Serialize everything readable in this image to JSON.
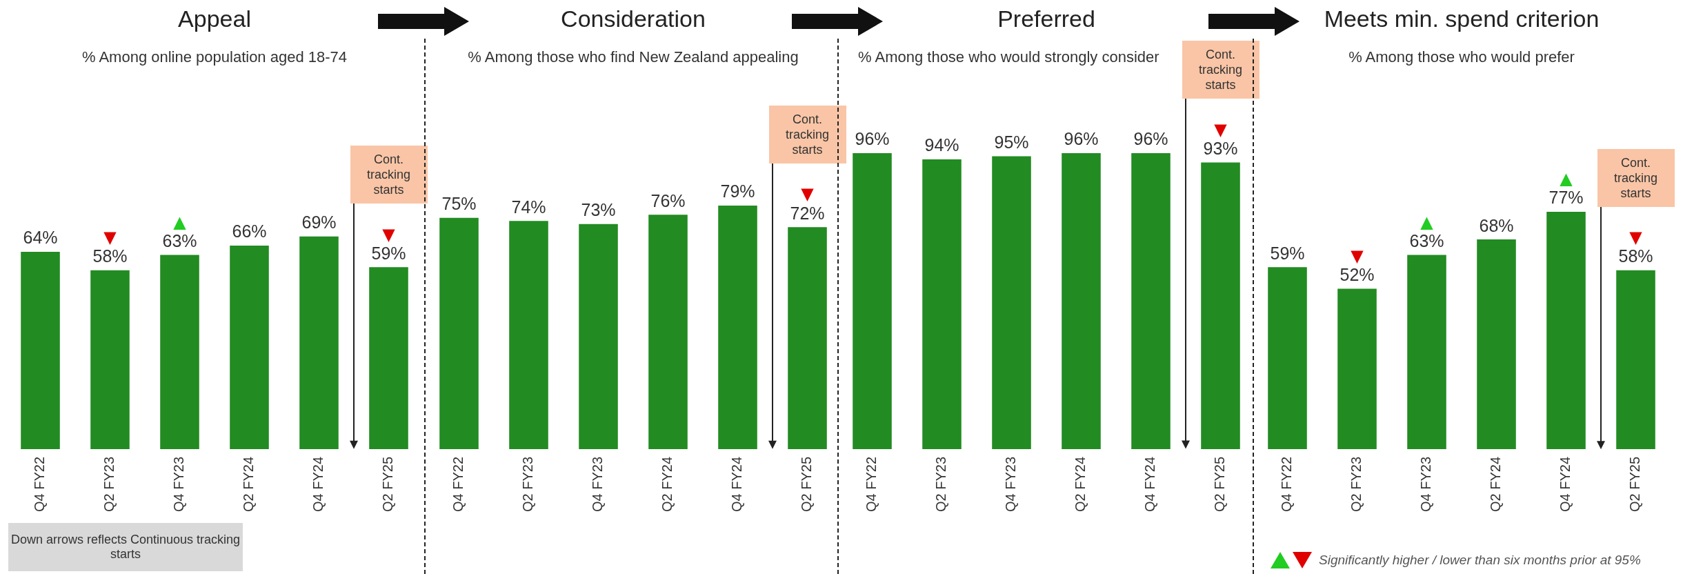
{
  "chart_data": [
    {
      "type": "bar",
      "title": "Appeal",
      "subtitle": "% Among online population aged 18-74",
      "categories": [
        "Q4 FY22",
        "Q2 FY23",
        "Q4 FY23",
        "Q2 FY24",
        "Q4 FY24",
        "Q2 FY25"
      ],
      "values": [
        64,
        58,
        63,
        66,
        69,
        59
      ],
      "value_labels": [
        "64%",
        "58%",
        "63%",
        "66%",
        "69%",
        "59%"
      ],
      "color": "#228b22",
      "grid": false,
      "legend": false,
      "annotations": [
        "Cont. tracking starts",
        {
          "text": "▼",
          "x": "Q2 FY23",
          "y": 58
        },
        {
          "text": "▲",
          "x": "Q4 FY23",
          "y": 63
        },
        {
          "text": "▼",
          "x": "Q2 FY25",
          "y": 59
        },
        "Down arrows reflects Continuous tracking starts"
      ]
    },
    {
      "type": "bar",
      "title": "Consideration",
      "subtitle": "% Among those who find New Zealand appealing",
      "categories": [
        "Q4 FY22",
        "Q2 FY23",
        "Q4 FY23",
        "Q2 FY24",
        "Q4 FY24",
        "Q2 FY25"
      ],
      "values": [
        75,
        74,
        73,
        76,
        79,
        72
      ],
      "value_labels": [
        "75%",
        "74%",
        "73%",
        "76%",
        "79%",
        "72%"
      ],
      "color": "#228b22",
      "grid": false,
      "legend": false,
      "annotations": [
        "Cont. tracking starts",
        {
          "text": "▼",
          "x": "Q2 FY25",
          "y": 72
        }
      ]
    },
    {
      "type": "bar",
      "title": "Preferred",
      "subtitle": "% Among those who would strongly consider",
      "categories": [
        "Q4 FY22",
        "Q2 FY23",
        "Q4 FY23",
        "Q2 FY24",
        "Q4 FY24",
        "Q2 FY25"
      ],
      "values": [
        96,
        94,
        95,
        96,
        96,
        93
      ],
      "value_labels": [
        "96%",
        "94%",
        "95%",
        "96%",
        "96%",
        "93%"
      ],
      "color": "#228b22",
      "grid": false,
      "legend": false,
      "annotations": [
        "Cont. tracking starts",
        {
          "text": "▼",
          "x": "Q2 FY25",
          "y": 93
        }
      ]
    },
    {
      "type": "bar",
      "title": "Meets min. spend criterion",
      "subtitle": "% Among those who would prefer",
      "categories": [
        "Q4 FY22",
        "Q2 FY23",
        "Q4 FY23",
        "Q2 FY24",
        "Q4 FY24",
        "Q2 FY25"
      ],
      "values": [
        59,
        52,
        63,
        68,
        77,
        58
      ],
      "value_labels": [
        "59%",
        "52%",
        "63%",
        "68%",
        "77%",
        "58%"
      ],
      "color": "#228b22",
      "grid": false,
      "legend": false,
      "annotations": [
        "Cont. tracking starts",
        {
          "text": "▼",
          "x": "Q2 FY23",
          "y": 52
        },
        {
          "text": "▲",
          "x": "Q4 FY23",
          "y": 63
        },
        {
          "text": "▲",
          "x": "Q4 FY24",
          "y": 77
        },
        {
          "text": "▼",
          "x": "Q2 FY25",
          "y": 58
        },
        "Significantly higher / lower than six months prior at 95%"
      ]
    }
  ]
}
